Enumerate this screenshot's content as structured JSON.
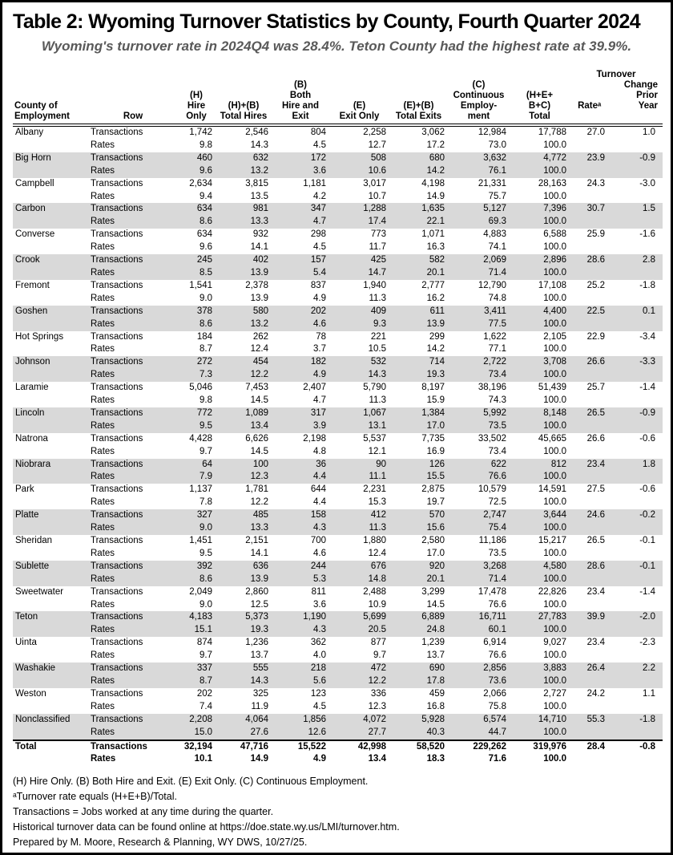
{
  "title": "Table 2: Wyoming Turnover Statistics by County, Fourth Quarter 2024",
  "subtitle": "Wyoming's turnover rate in 2024Q4 was 28.4%. Teton County had the highest rate at 39.9%.",
  "colors": {
    "band_shade": "#d9d9d9",
    "subtitle_gray": "#595959"
  },
  "table": {
    "headers": {
      "county": "County of\nEmployment",
      "row": "Row",
      "hire_only": "(H)\nHire\nOnly",
      "total_hires": "(H)+(B)\nTotal Hires",
      "both_hire_exit": "(B)\nBoth\nHire and\nExit",
      "exit_only": "(E)\nExit Only",
      "total_exits": "(E)+(B)\nTotal Exits",
      "continuous": "(C)\nContinuous\nEmploy-\nment",
      "total": "(H+E+\nB+C)\nTotal",
      "turnover": "Turnover",
      "rate": "Rateᵃ",
      "change": "Change\nPrior\nYear"
    },
    "row_labels": {
      "transactions": "Transactions",
      "rates": "Rates"
    },
    "counties": [
      {
        "name": "Albany",
        "transactions": [
          "1,742",
          "2,546",
          "804",
          "2,258",
          "3,062",
          "12,984",
          "17,788"
        ],
        "rates": [
          "9.8",
          "14.3",
          "4.5",
          "12.7",
          "17.2",
          "73.0",
          "100.0"
        ],
        "rate": "27.0",
        "change": "1.0"
      },
      {
        "name": "Big Horn",
        "transactions": [
          "460",
          "632",
          "172",
          "508",
          "680",
          "3,632",
          "4,772"
        ],
        "rates": [
          "9.6",
          "13.2",
          "3.6",
          "10.6",
          "14.2",
          "76.1",
          "100.0"
        ],
        "rate": "23.9",
        "change": "-0.9"
      },
      {
        "name": "Campbell",
        "transactions": [
          "2,634",
          "3,815",
          "1,181",
          "3,017",
          "4,198",
          "21,331",
          "28,163"
        ],
        "rates": [
          "9.4",
          "13.5",
          "4.2",
          "10.7",
          "14.9",
          "75.7",
          "100.0"
        ],
        "rate": "24.3",
        "change": "-3.0"
      },
      {
        "name": "Carbon",
        "transactions": [
          "634",
          "981",
          "347",
          "1,288",
          "1,635",
          "5,127",
          "7,396"
        ],
        "rates": [
          "8.6",
          "13.3",
          "4.7",
          "17.4",
          "22.1",
          "69.3",
          "100.0"
        ],
        "rate": "30.7",
        "change": "1.5"
      },
      {
        "name": "Converse",
        "transactions": [
          "634",
          "932",
          "298",
          "773",
          "1,071",
          "4,883",
          "6,588"
        ],
        "rates": [
          "9.6",
          "14.1",
          "4.5",
          "11.7",
          "16.3",
          "74.1",
          "100.0"
        ],
        "rate": "25.9",
        "change": "-1.6"
      },
      {
        "name": "Crook",
        "transactions": [
          "245",
          "402",
          "157",
          "425",
          "582",
          "2,069",
          "2,896"
        ],
        "rates": [
          "8.5",
          "13.9",
          "5.4",
          "14.7",
          "20.1",
          "71.4",
          "100.0"
        ],
        "rate": "28.6",
        "change": "2.8"
      },
      {
        "name": "Fremont",
        "transactions": [
          "1,541",
          "2,378",
          "837",
          "1,940",
          "2,777",
          "12,790",
          "17,108"
        ],
        "rates": [
          "9.0",
          "13.9",
          "4.9",
          "11.3",
          "16.2",
          "74.8",
          "100.0"
        ],
        "rate": "25.2",
        "change": "-1.8"
      },
      {
        "name": "Goshen",
        "transactions": [
          "378",
          "580",
          "202",
          "409",
          "611",
          "3,411",
          "4,400"
        ],
        "rates": [
          "8.6",
          "13.2",
          "4.6",
          "9.3",
          "13.9",
          "77.5",
          "100.0"
        ],
        "rate": "22.5",
        "change": "0.1"
      },
      {
        "name": "Hot Springs",
        "transactions": [
          "184",
          "262",
          "78",
          "221",
          "299",
          "1,622",
          "2,105"
        ],
        "rates": [
          "8.7",
          "12.4",
          "3.7",
          "10.5",
          "14.2",
          "77.1",
          "100.0"
        ],
        "rate": "22.9",
        "change": "-3.4"
      },
      {
        "name": "Johnson",
        "transactions": [
          "272",
          "454",
          "182",
          "532",
          "714",
          "2,722",
          "3,708"
        ],
        "rates": [
          "7.3",
          "12.2",
          "4.9",
          "14.3",
          "19.3",
          "73.4",
          "100.0"
        ],
        "rate": "26.6",
        "change": "-3.3"
      },
      {
        "name": "Laramie",
        "transactions": [
          "5,046",
          "7,453",
          "2,407",
          "5,790",
          "8,197",
          "38,196",
          "51,439"
        ],
        "rates": [
          "9.8",
          "14.5",
          "4.7",
          "11.3",
          "15.9",
          "74.3",
          "100.0"
        ],
        "rate": "25.7",
        "change": "-1.4"
      },
      {
        "name": "Lincoln",
        "transactions": [
          "772",
          "1,089",
          "317",
          "1,067",
          "1,384",
          "5,992",
          "8,148"
        ],
        "rates": [
          "9.5",
          "13.4",
          "3.9",
          "13.1",
          "17.0",
          "73.5",
          "100.0"
        ],
        "rate": "26.5",
        "change": "-0.9"
      },
      {
        "name": "Natrona",
        "transactions": [
          "4,428",
          "6,626",
          "2,198",
          "5,537",
          "7,735",
          "33,502",
          "45,665"
        ],
        "rates": [
          "9.7",
          "14.5",
          "4.8",
          "12.1",
          "16.9",
          "73.4",
          "100.0"
        ],
        "rate": "26.6",
        "change": "-0.6"
      },
      {
        "name": "Niobrara",
        "transactions": [
          "64",
          "100",
          "36",
          "90",
          "126",
          "622",
          "812"
        ],
        "rates": [
          "7.9",
          "12.3",
          "4.4",
          "11.1",
          "15.5",
          "76.6",
          "100.0"
        ],
        "rate": "23.4",
        "change": "1.8"
      },
      {
        "name": "Park",
        "transactions": [
          "1,137",
          "1,781",
          "644",
          "2,231",
          "2,875",
          "10,579",
          "14,591"
        ],
        "rates": [
          "7.8",
          "12.2",
          "4.4",
          "15.3",
          "19.7",
          "72.5",
          "100.0"
        ],
        "rate": "27.5",
        "change": "-0.6"
      },
      {
        "name": "Platte",
        "transactions": [
          "327",
          "485",
          "158",
          "412",
          "570",
          "2,747",
          "3,644"
        ],
        "rates": [
          "9.0",
          "13.3",
          "4.3",
          "11.3",
          "15.6",
          "75.4",
          "100.0"
        ],
        "rate": "24.6",
        "change": "-0.2"
      },
      {
        "name": "Sheridan",
        "transactions": [
          "1,451",
          "2,151",
          "700",
          "1,880",
          "2,580",
          "11,186",
          "15,217"
        ],
        "rates": [
          "9.5",
          "14.1",
          "4.6",
          "12.4",
          "17.0",
          "73.5",
          "100.0"
        ],
        "rate": "26.5",
        "change": "-0.1"
      },
      {
        "name": "Sublette",
        "transactions": [
          "392",
          "636",
          "244",
          "676",
          "920",
          "3,268",
          "4,580"
        ],
        "rates": [
          "8.6",
          "13.9",
          "5.3",
          "14.8",
          "20.1",
          "71.4",
          "100.0"
        ],
        "rate": "28.6",
        "change": "-0.1"
      },
      {
        "name": "Sweetwater",
        "transactions": [
          "2,049",
          "2,860",
          "811",
          "2,488",
          "3,299",
          "17,478",
          "22,826"
        ],
        "rates": [
          "9.0",
          "12.5",
          "3.6",
          "10.9",
          "14.5",
          "76.6",
          "100.0"
        ],
        "rate": "23.4",
        "change": "-1.4"
      },
      {
        "name": "Teton",
        "transactions": [
          "4,183",
          "5,373",
          "1,190",
          "5,699",
          "6,889",
          "16,711",
          "27,783"
        ],
        "rates": [
          "15.1",
          "19.3",
          "4.3",
          "20.5",
          "24.8",
          "60.1",
          "100.0"
        ],
        "rate": "39.9",
        "change": "-2.0"
      },
      {
        "name": "Uinta",
        "transactions": [
          "874",
          "1,236",
          "362",
          "877",
          "1,239",
          "6,914",
          "9,027"
        ],
        "rates": [
          "9.7",
          "13.7",
          "4.0",
          "9.7",
          "13.7",
          "76.6",
          "100.0"
        ],
        "rate": "23.4",
        "change": "-2.3"
      },
      {
        "name": "Washakie",
        "transactions": [
          "337",
          "555",
          "218",
          "472",
          "690",
          "2,856",
          "3,883"
        ],
        "rates": [
          "8.7",
          "14.3",
          "5.6",
          "12.2",
          "17.8",
          "73.6",
          "100.0"
        ],
        "rate": "26.4",
        "change": "2.2"
      },
      {
        "name": "Weston",
        "transactions": [
          "202",
          "325",
          "123",
          "336",
          "459",
          "2,066",
          "2,727"
        ],
        "rates": [
          "7.4",
          "11.9",
          "4.5",
          "12.3",
          "16.8",
          "75.8",
          "100.0"
        ],
        "rate": "24.2",
        "change": "1.1"
      },
      {
        "name": "Nonclassified",
        "transactions": [
          "2,208",
          "4,064",
          "1,856",
          "4,072",
          "5,928",
          "6,574",
          "14,710"
        ],
        "rates": [
          "15.0",
          "27.6",
          "12.6",
          "27.7",
          "40.3",
          "44.7",
          "100.0"
        ],
        "rate": "55.3",
        "change": "-1.8"
      }
    ],
    "total_row": {
      "name": "Total",
      "transactions": [
        "32,194",
        "47,716",
        "15,522",
        "42,998",
        "58,520",
        "229,262",
        "319,976"
      ],
      "rates": [
        "10.1",
        "14.9",
        "4.9",
        "13.4",
        "18.3",
        "71.6",
        "100.0"
      ],
      "rate": "28.4",
      "change": "-0.8"
    }
  },
  "footnotes": [
    "(H) Hire Only. (B) Both Hire and Exit. (E) Exit Only. (C) Continuous Employment.",
    "ᵃTurnover rate equals (H+E+B)/Total.",
    "Transactions = Jobs worked at any time during the quarter.",
    "Historical turnover data can be found online at https://doe.state.wy.us/LMI/turnover.htm.",
    "Prepared by M. Moore, Research & Planning, WY DWS, 10/27/25."
  ]
}
